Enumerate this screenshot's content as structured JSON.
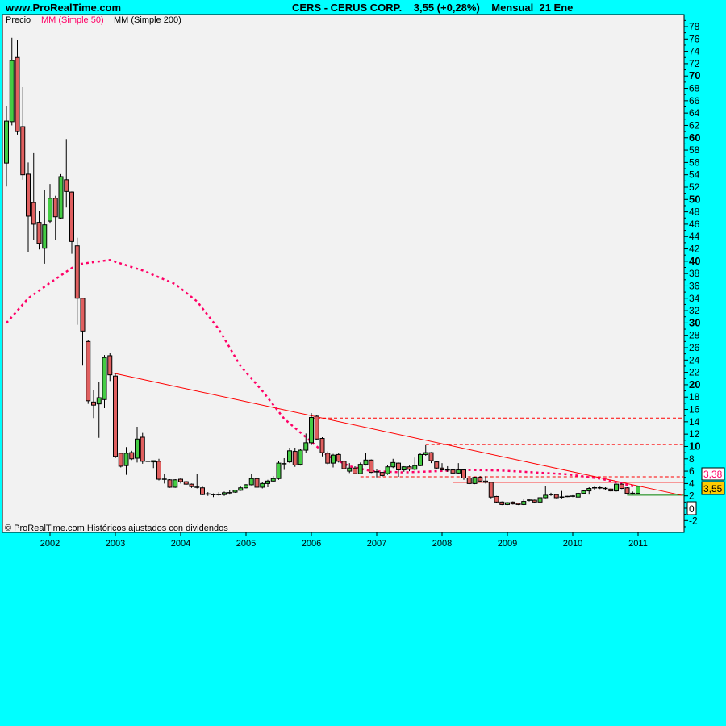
{
  "header": {
    "site": "www.ProRealTime.com",
    "symbol": "CERS - CERUS CORP.",
    "quote": "3,55 (+0,28%)",
    "period": "Mensual",
    "date": "21 Ene"
  },
  "legend": [
    {
      "label": "Precio",
      "color": "#000000"
    },
    {
      "label": "MM (Simple 50)",
      "color": "#ff0066"
    },
    {
      "label": "MM (Simple 200)",
      "color": "#000000"
    }
  ],
  "footer": "© ProRealTime.com  Históricos ajustados con dividendos",
  "colors": {
    "background": "#00ffff",
    "plot": "#f2f2f2",
    "up": "#44cc44",
    "down": "#e06060",
    "ma50": "#ff0066",
    "trend": "#ff0000",
    "support": "#008000",
    "last_price": "#ffcc00"
  },
  "price_labels": {
    "last": "3,55",
    "ma50": "3,38",
    "zero": "0"
  },
  "chart_data": {
    "type": "candlestick",
    "title": "CERS - CERUS CORP.",
    "interval": "monthly",
    "ylim": [
      -3,
      79
    ],
    "yticks": [
      -2,
      0,
      2,
      4,
      6,
      8,
      10,
      12,
      14,
      16,
      18,
      20,
      22,
      24,
      26,
      28,
      30,
      32,
      34,
      36,
      38,
      40,
      42,
      44,
      46,
      48,
      50,
      52,
      54,
      56,
      58,
      60,
      62,
      64,
      66,
      68,
      70,
      72,
      74,
      76,
      78
    ],
    "xticks": [
      "2002",
      "2003",
      "2004",
      "2005",
      "2006",
      "2007",
      "2008",
      "2009",
      "2010",
      "2011"
    ],
    "grid": false,
    "legend_position": "top-left",
    "candles_ohlc": [
      [
        "2001-05",
        55.9,
        65.1,
        52.1,
        62.7
      ],
      [
        "2001-06",
        62.6,
        76.2,
        62.0,
        72.5
      ],
      [
        "2001-07",
        73.0,
        75.9,
        60.5,
        61.0
      ],
      [
        "2001-08",
        61.8,
        68.2,
        53.2,
        54.0
      ],
      [
        "2001-09",
        54.1,
        56.0,
        41.5,
        47.3
      ],
      [
        "2001-10",
        49.5,
        57.5,
        43.5,
        46.0
      ],
      [
        "2001-11",
        46.3,
        48.1,
        41.9,
        42.9
      ],
      [
        "2001-12",
        42.1,
        51.5,
        39.6,
        45.9
      ],
      [
        "2002-01",
        46.5,
        52.5,
        46.1,
        50.2
      ],
      [
        "2002-02",
        50.2,
        50.6,
        43.5,
        47.2
      ],
      [
        "2002-03",
        47.0,
        54.1,
        46.8,
        53.7
      ],
      [
        "2002-04",
        53.2,
        59.8,
        48.7,
        51.3
      ],
      [
        "2002-05",
        51.2,
        51.3,
        41.2,
        43.2
      ],
      [
        "2002-06",
        42.5,
        43.8,
        29.7,
        34.0
      ],
      [
        "2002-07",
        34.0,
        34.0,
        23.1,
        28.7
      ],
      [
        "2002-08",
        27.0,
        27.3,
        16.9,
        17.4
      ],
      [
        "2002-09",
        17.2,
        19.2,
        14.6,
        16.7
      ],
      [
        "2002-10",
        16.9,
        20.5,
        11.4,
        17.9
      ],
      [
        "2002-11",
        17.6,
        24.8,
        16.2,
        24.4
      ],
      [
        "2002-12",
        24.7,
        25.1,
        20.6,
        21.6
      ],
      [
        "2003-01",
        21.4,
        21.8,
        8.1,
        8.4
      ],
      [
        "2003-02",
        8.9,
        8.9,
        6.6,
        6.8
      ],
      [
        "2003-03",
        6.9,
        9.9,
        5.4,
        8.9
      ],
      [
        "2003-04",
        9.0,
        9.3,
        7.8,
        8.0
      ],
      [
        "2003-05",
        8.1,
        13.2,
        7.4,
        11.2
      ],
      [
        "2003-06",
        11.5,
        12.2,
        7.2,
        7.6
      ],
      [
        "2003-07",
        7.6,
        8.2,
        6.9,
        7.6
      ],
      [
        "2003-08",
        7.5,
        7.7,
        6.5,
        7.7
      ],
      [
        "2003-09",
        7.6,
        8.0,
        4.5,
        4.7
      ],
      [
        "2003-10",
        4.7,
        5.5,
        4.0,
        4.7
      ],
      [
        "2003-11",
        4.6,
        4.7,
        3.3,
        3.4
      ],
      [
        "2003-12",
        3.4,
        4.7,
        3.3,
        4.6
      ],
      [
        "2004-01",
        4.7,
        4.9,
        4.0,
        4.3
      ],
      [
        "2004-02",
        4.3,
        4.4,
        3.8,
        3.9
      ],
      [
        "2004-03",
        3.9,
        4.0,
        3.3,
        3.5
      ],
      [
        "2004-04",
        3.4,
        5.5,
        3.2,
        3.4
      ],
      [
        "2004-05",
        3.3,
        3.5,
        2.1,
        2.2
      ],
      [
        "2004-06",
        2.3,
        2.6,
        2.0,
        2.3
      ],
      [
        "2004-07",
        2.2,
        2.4,
        1.8,
        2.2
      ],
      [
        "2004-08",
        2.2,
        2.6,
        2.0,
        2.2
      ],
      [
        "2004-09",
        2.2,
        2.7,
        2.0,
        2.5
      ],
      [
        "2004-10",
        2.5,
        2.9,
        2.2,
        2.5
      ],
      [
        "2004-11",
        2.6,
        3.0,
        2.5,
        2.9
      ],
      [
        "2004-12",
        2.9,
        3.5,
        2.8,
        3.3
      ],
      [
        "2005-01",
        3.3,
        3.9,
        3.2,
        3.8
      ],
      [
        "2005-02",
        3.8,
        5.6,
        3.7,
        4.8
      ],
      [
        "2005-03",
        4.8,
        4.9,
        3.3,
        3.4
      ],
      [
        "2005-04",
        3.4,
        4.2,
        3.2,
        4.0
      ],
      [
        "2005-05",
        4.0,
        4.6,
        3.4,
        4.4
      ],
      [
        "2005-06",
        4.4,
        5.2,
        4.2,
        4.8
      ],
      [
        "2005-07",
        4.8,
        7.6,
        4.6,
        7.3
      ],
      [
        "2005-08",
        7.2,
        8.1,
        6.2,
        7.2
      ],
      [
        "2005-09",
        7.5,
        9.8,
        7.3,
        9.3
      ],
      [
        "2005-10",
        9.2,
        9.8,
        6.7,
        7.0
      ],
      [
        "2005-11",
        7.1,
        9.6,
        6.9,
        9.4
      ],
      [
        "2005-12",
        9.4,
        12.1,
        9.0,
        10.6
      ],
      [
        "2006-01",
        10.6,
        15.4,
        10.2,
        14.7
      ],
      [
        "2006-02",
        14.9,
        15.1,
        11.0,
        11.2
      ],
      [
        "2006-03",
        11.3,
        11.5,
        8.4,
        9.0
      ],
      [
        "2006-04",
        8.9,
        9.2,
        7.1,
        7.3
      ],
      [
        "2006-05",
        7.3,
        8.8,
        6.6,
        8.6
      ],
      [
        "2006-06",
        8.7,
        8.9,
        7.4,
        7.6
      ],
      [
        "2006-07",
        7.6,
        7.8,
        5.9,
        6.4
      ],
      [
        "2006-08",
        6.0,
        7.3,
        5.7,
        6.5
      ],
      [
        "2006-09",
        6.5,
        6.8,
        5.5,
        5.6
      ],
      [
        "2006-10",
        5.6,
        7.4,
        5.5,
        7.1
      ],
      [
        "2006-11",
        7.1,
        8.9,
        6.9,
        7.8
      ],
      [
        "2006-12",
        7.8,
        7.9,
        5.7,
        5.8
      ],
      [
        "2007-01",
        5.9,
        6.3,
        5.0,
        5.9
      ],
      [
        "2007-02",
        5.8,
        5.9,
        5.1,
        5.3
      ],
      [
        "2007-03",
        5.6,
        7.0,
        5.4,
        6.7
      ],
      [
        "2007-04",
        6.7,
        8.0,
        6.5,
        7.4
      ],
      [
        "2007-05",
        7.3,
        7.4,
        5.1,
        6.2
      ],
      [
        "2007-06",
        6.2,
        6.8,
        5.9,
        6.7
      ],
      [
        "2007-07",
        6.7,
        6.9,
        6.0,
        6.3
      ],
      [
        "2007-08",
        6.3,
        8.2,
        6.1,
        6.9
      ],
      [
        "2007-09",
        6.9,
        8.9,
        6.8,
        8.7
      ],
      [
        "2007-10",
        8.7,
        10.2,
        8.5,
        9.0
      ],
      [
        "2007-11",
        9.0,
        9.1,
        7.3,
        7.7
      ],
      [
        "2007-12",
        7.5,
        7.6,
        6.3,
        6.5
      ],
      [
        "2008-01",
        6.5,
        7.3,
        6.1,
        6.2
      ],
      [
        "2008-02",
        6.2,
        6.8,
        5.9,
        6.2
      ],
      [
        "2008-03",
        6.2,
        6.4,
        4.1,
        5.7
      ],
      [
        "2008-04",
        5.7,
        7.3,
        5.5,
        6.2
      ],
      [
        "2008-05",
        6.2,
        6.3,
        4.6,
        4.9
      ],
      [
        "2008-06",
        4.9,
        5.2,
        3.9,
        4.0
      ],
      [
        "2008-07",
        4.0,
        5.1,
        3.9,
        5.0
      ],
      [
        "2008-08",
        5.0,
        5.2,
        4.2,
        4.4
      ],
      [
        "2008-09",
        4.4,
        5.2,
        4.0,
        4.2
      ],
      [
        "2008-10",
        4.2,
        4.3,
        1.6,
        1.8
      ],
      [
        "2008-11",
        1.9,
        2.0,
        0.8,
        1.0
      ],
      [
        "2008-12",
        1.0,
        1.1,
        0.5,
        0.6
      ],
      [
        "2009-01",
        0.6,
        1.0,
        0.5,
        0.9
      ],
      [
        "2009-02",
        1.0,
        1.1,
        0.6,
        0.7
      ],
      [
        "2009-03",
        0.8,
        0.9,
        0.5,
        0.6
      ],
      [
        "2009-04",
        0.6,
        1.5,
        0.5,
        1.1
      ],
      [
        "2009-05",
        1.3,
        1.5,
        1.1,
        1.3
      ],
      [
        "2009-06",
        1.3,
        1.4,
        0.9,
        1.0
      ],
      [
        "2009-07",
        1.0,
        2.3,
        0.9,
        1.7
      ],
      [
        "2009-08",
        1.7,
        3.6,
        1.6,
        2.1
      ],
      [
        "2009-09",
        2.2,
        2.5,
        2.0,
        2.2
      ],
      [
        "2009-10",
        2.2,
        2.3,
        1.6,
        1.7
      ],
      [
        "2009-11",
        1.8,
        2.8,
        1.6,
        1.8
      ],
      [
        "2009-12",
        1.9,
        2.0,
        1.8,
        1.9
      ],
      [
        "2010-01",
        1.95,
        2.1,
        1.8,
        1.95
      ],
      [
        "2010-02",
        1.8,
        2.5,
        1.8,
        2.4
      ],
      [
        "2010-03",
        2.4,
        2.9,
        2.3,
        2.8
      ],
      [
        "2010-04",
        2.8,
        3.4,
        2.2,
        3.2
      ],
      [
        "2010-05",
        3.3,
        3.5,
        3.0,
        3.3
      ],
      [
        "2010-06",
        3.3,
        3.5,
        3.1,
        3.3
      ],
      [
        "2010-07",
        3.2,
        3.4,
        3.0,
        3.2
      ],
      [
        "2010-08",
        3.1,
        3.2,
        2.7,
        2.8
      ],
      [
        "2010-09",
        2.8,
        4.0,
        2.7,
        3.9
      ],
      [
        "2010-10",
        3.9,
        4.0,
        3.1,
        3.2
      ],
      [
        "2010-11",
        3.3,
        3.4,
        2.2,
        2.4
      ],
      [
        "2010-12",
        2.4,
        2.7,
        2.2,
        2.4
      ],
      [
        "2011-01",
        2.4,
        3.6,
        2.3,
        3.55
      ]
    ],
    "ma50": [
      [
        "2001-05",
        30
      ],
      [
        "2001-09",
        34
      ],
      [
        "2002-01",
        36.5
      ],
      [
        "2002-06",
        39.5
      ],
      [
        "2002-12",
        40.2
      ],
      [
        "2003-06",
        38.5
      ],
      [
        "2003-12",
        36.3
      ],
      [
        "2004-04",
        33.5
      ],
      [
        "2004-08",
        29
      ],
      [
        "2004-12",
        23
      ],
      [
        "2005-04",
        19
      ],
      [
        "2005-08",
        14.5
      ],
      [
        "2005-12",
        11.5
      ],
      [
        "2006-04",
        8.5
      ],
      [
        "2006-08",
        6.8
      ],
      [
        "2006-12",
        6.0
      ],
      [
        "2007-06",
        5.8
      ],
      [
        "2007-12",
        6.0
      ],
      [
        "2008-06",
        6.2
      ],
      [
        "2008-12",
        6.1
      ],
      [
        "2009-06",
        5.8
      ],
      [
        "2009-12",
        5.5
      ],
      [
        "2010-06",
        4.8
      ],
      [
        "2010-09",
        4.2
      ],
      [
        "2011-01",
        3.38
      ]
    ],
    "trendline": {
      "from": [
        "2002-12",
        22.0
      ],
      "to": [
        "2011-09",
        2.1
      ]
    },
    "horizontal_levels": [
      {
        "from": "2006-01",
        "value": 14.6,
        "style": "dashed"
      },
      {
        "from": "2007-10",
        "value": 10.3,
        "style": "dashed"
      },
      {
        "from": "2006-10",
        "value": 5.1,
        "style": "dashed"
      },
      {
        "from": "2008-03",
        "value": 4.2,
        "style": "solid"
      },
      {
        "from": "2010-11",
        "value": 2.1,
        "style": "solid-green"
      }
    ]
  }
}
